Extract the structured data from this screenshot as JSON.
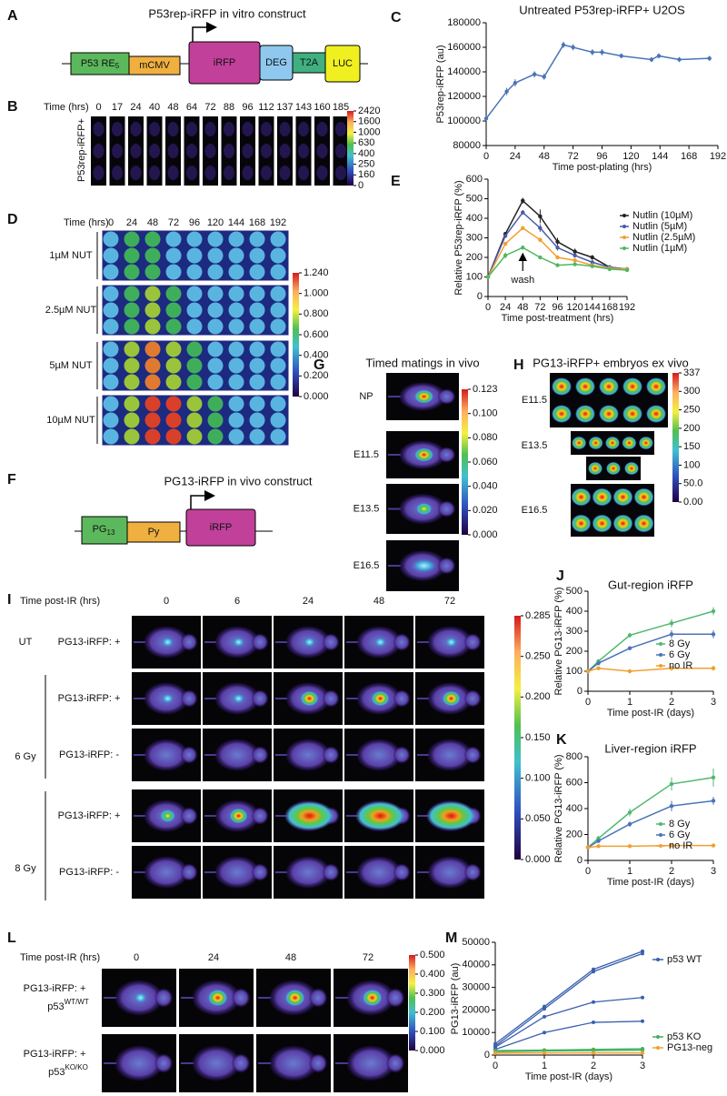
{
  "panel_letters": [
    "A",
    "B",
    "C",
    "D",
    "E",
    "F",
    "G",
    "H",
    "I",
    "J",
    "K",
    "L",
    "M"
  ],
  "construct_a": {
    "title": "P53rep-iRFP in vitro construct",
    "re": "P53 RE",
    "re_sub": "5",
    "promoter": "mCMV",
    "reporter": "iRFP",
    "deg": "DEG",
    "t2a": "T2A",
    "luc": "LUC"
  },
  "panel_b": {
    "time_label": "Time (hrs)",
    "times": [
      0,
      17,
      24,
      40,
      48,
      64,
      72,
      88,
      96,
      112,
      137,
      143,
      160,
      185
    ],
    "row_label": "P53rep-iRFP+",
    "colorbar": [
      2420,
      1600,
      1000,
      630,
      400,
      250,
      160,
      0
    ]
  },
  "panel_d": {
    "time_label": "Time (hrs)",
    "times": [
      0,
      24,
      48,
      72,
      96,
      120,
      144,
      168,
      192
    ],
    "rows": [
      "1µM NUT",
      "2.5µM NUT",
      "5µM NUT",
      "10µM NUT"
    ],
    "colorbar": [
      {
        "value": 1.24,
        "label": "1.240"
      },
      {
        "value": 1,
        "label": "1.000"
      },
      {
        "value": 0.8,
        "label": "0.800"
      },
      {
        "value": 0.6,
        "label": "0.600"
      },
      {
        "value": 0.4,
        "label": "0.400"
      },
      {
        "value": 0.2,
        "label": "0.200"
      },
      {
        "value": 0,
        "label": "0.000"
      }
    ]
  },
  "construct_f": {
    "title": "PG13-iRFP in vivo construct",
    "pg": "PG",
    "pg_sub": "13",
    "py": "Py",
    "reporter": "iRFP"
  },
  "panel_g": {
    "title": "Timed matings in vivo",
    "rows": [
      "NP",
      "E11.5",
      "E13.5",
      "E16.5"
    ],
    "colorbar": [
      0.123,
      {
        "value": 0.1,
        "label": "0.100"
      },
      {
        "value": 0.08,
        "label": "0.080"
      },
      {
        "value": 0.06,
        "label": "0.060"
      },
      {
        "value": 0.04,
        "label": "0.040"
      },
      {
        "value": 0.02,
        "label": "0.020"
      },
      {
        "value": 0,
        "label": "0.000"
      }
    ]
  },
  "panel_h": {
    "title": "PG13-iRFP+ embryos ex vivo",
    "rows": [
      "E11.5",
      "E13.5",
      "E16.5"
    ],
    "colorbar": [
      337,
      300,
      250,
      200,
      150,
      100,
      {
        "value": 50,
        "label": "50.0"
      },
      {
        "value": 0,
        "label": "0.00"
      }
    ]
  },
  "panel_i": {
    "time_label": "Time post-IR (hrs)",
    "times": [
      0,
      6,
      24,
      48,
      72
    ],
    "groups": [
      "UT",
      "6 Gy",
      "8 Gy"
    ],
    "rows": [
      "PG13-iRFP: +",
      "PG13-iRFP: +",
      "PG13-iRFP: -",
      "PG13-iRFP: +",
      "PG13-iRFP: -"
    ],
    "colorbar": [
      0.285,
      {
        "value": 0.25,
        "label": "0.250"
      },
      {
        "value": 0.2,
        "label": "0.200"
      },
      {
        "value": 0.15,
        "label": "0.150"
      },
      {
        "value": 0.1,
        "label": "0.100"
      },
      {
        "value": 0.05,
        "label": "0.050"
      },
      {
        "value": 0,
        "label": "0.000"
      }
    ]
  },
  "panel_l": {
    "time_label": "Time post-IR (hrs)",
    "times": [
      0,
      24,
      48,
      72
    ],
    "rows": [
      {
        "line1": "PG13-iRFP: +",
        "line2": "p53",
        "sup": "WT/WT"
      },
      {
        "line1": "PG13-iRFP: +",
        "line2": "p53",
        "sup": "KO/KO"
      }
    ],
    "colorbar": [
      {
        "value": 0.5,
        "label": "0.500"
      },
      {
        "value": 0.4,
        "label": "0.400"
      },
      {
        "value": 0.3,
        "label": "0.300"
      },
      {
        "value": 0.2,
        "label": "0.200"
      },
      {
        "value": 0.1,
        "label": "0.100"
      },
      {
        "value": 0,
        "label": "0.000"
      }
    ]
  },
  "chart_data": [
    {
      "type": "line",
      "title": "Untreated P53rep-iRFP+ U2OS",
      "x_label": "Time post-plating (hrs)",
      "y_label": "P53rep-iRFP (au)",
      "x": [
        0,
        17,
        24,
        40,
        48,
        64,
        72,
        88,
        96,
        112,
        137,
        143,
        160,
        185
      ],
      "xlim": [
        0,
        192
      ],
      "xticks": [
        0,
        24,
        48,
        72,
        96,
        120,
        144,
        168,
        192
      ],
      "ylim": [
        80000,
        180000
      ],
      "yticks": [
        80000,
        100000,
        120000,
        140000,
        160000,
        180000
      ],
      "series": [
        {
          "color": "#4a74b8",
          "values": [
            102000,
            124000,
            131000,
            138000,
            136000,
            162000,
            160000,
            156000,
            156000,
            153000,
            150000,
            153000,
            150000,
            151000
          ],
          "errors": [
            2000,
            3000,
            3000,
            2500,
            2500,
            2500,
            2500,
            2500,
            2500,
            2000,
            2000,
            2000,
            2000,
            2000
          ]
        }
      ]
    },
    {
      "type": "line",
      "x_label": "Time post-treatment (hrs)",
      "y_label": "Relative P53rep-iRFP (%)",
      "x": [
        0,
        24,
        48,
        72,
        96,
        120,
        144,
        168,
        192
      ],
      "xlim": [
        0,
        192
      ],
      "xticks": [
        0,
        24,
        48,
        72,
        96,
        120,
        144,
        168,
        192
      ],
      "ylim": [
        0,
        600
      ],
      "yticks": [
        0,
        100,
        200,
        300,
        400,
        500,
        600
      ],
      "annotations": [
        {
          "text": "wash",
          "x": 48
        }
      ],
      "series": [
        {
          "name": "Nutlin (10µM)",
          "color": "#222222",
          "values": [
            100,
            320,
            490,
            410,
            280,
            230,
            200,
            150,
            140
          ],
          "errors": [
            5,
            10,
            15,
            35,
            20,
            15,
            12,
            10,
            8
          ]
        },
        {
          "name": "Nutlin (5µM)",
          "color": "#4a5aa8",
          "values": [
            100,
            310,
            430,
            350,
            250,
            210,
            175,
            150,
            140
          ],
          "errors": [
            5,
            10,
            12,
            20,
            15,
            12,
            10,
            8,
            8
          ]
        },
        {
          "name": "Nutlin (2.5µM)",
          "color": "#f0a030",
          "values": [
            100,
            270,
            350,
            290,
            200,
            185,
            160,
            145,
            140
          ],
          "errors": [
            5,
            8,
            10,
            12,
            10,
            10,
            8,
            8,
            6
          ]
        },
        {
          "name": "Nutlin (1µM)",
          "color": "#50b860",
          "values": [
            100,
            210,
            250,
            200,
            160,
            165,
            155,
            140,
            135
          ],
          "errors": [
            5,
            15,
            10,
            8,
            8,
            8,
            8,
            6,
            6
          ]
        }
      ]
    },
    {
      "type": "line",
      "title": "Gut-region iRFP",
      "x_label": "Time post-IR (days)",
      "y_label": "Relative PG13-iRFP (%)",
      "x": [
        0,
        0.25,
        1,
        2,
        3
      ],
      "xlim": [
        0,
        3
      ],
      "xticks": [
        0,
        1,
        2,
        3
      ],
      "ylim": [
        0,
        500
      ],
      "yticks": [
        0,
        100,
        200,
        300,
        400,
        500
      ],
      "series": [
        {
          "name": "8 Gy",
          "color": "#50b870",
          "values": [
            100,
            150,
            280,
            340,
            400
          ],
          "errors": [
            0,
            10,
            12,
            20,
            20
          ]
        },
        {
          "name": "6 Gy",
          "color": "#4a74b8",
          "values": [
            100,
            140,
            215,
            285,
            285
          ],
          "errors": [
            0,
            10,
            10,
            20,
            20
          ]
        },
        {
          "name": "no IR",
          "color": "#f0a030",
          "values": [
            100,
            115,
            100,
            115,
            115
          ],
          "errors": [
            0,
            10,
            10,
            12,
            12
          ]
        }
      ]
    },
    {
      "type": "line",
      "title": "Liver-region iRFP",
      "x_label": "Time post-IR (days)",
      "y_label": "Relative PG13-iRFP (%)",
      "x": [
        0,
        0.25,
        1,
        2,
        3
      ],
      "xlim": [
        0,
        3
      ],
      "xticks": [
        0,
        1,
        2,
        3
      ],
      "ylim": [
        0,
        800
      ],
      "yticks": [
        0,
        200,
        400,
        600,
        800
      ],
      "series": [
        {
          "name": "8 Gy",
          "color": "#50b870",
          "values": [
            100,
            170,
            370,
            590,
            640
          ],
          "errors": [
            0,
            20,
            30,
            50,
            70
          ]
        },
        {
          "name": "6 Gy",
          "color": "#4a74b8",
          "values": [
            100,
            150,
            280,
            420,
            460
          ],
          "errors": [
            0,
            15,
            20,
            40,
            30
          ]
        },
        {
          "name": "no IR",
          "color": "#f0a030",
          "values": [
            100,
            110,
            110,
            115,
            115
          ],
          "errors": [
            0,
            8,
            5,
            5,
            5
          ]
        }
      ]
    },
    {
      "type": "line",
      "x_label": "Time post-IR (days)",
      "y_label": "PG13-iRFP (au)",
      "x": [
        0,
        1,
        2,
        3
      ],
      "xlim": [
        0,
        3
      ],
      "xticks": [
        0,
        1,
        2,
        3
      ],
      "ylim": [
        0,
        50000
      ],
      "yticks": [
        0,
        10000,
        20000,
        30000,
        40000,
        50000
      ],
      "groups": [
        {
          "name": "p53 WT",
          "color": "#3a60b0",
          "lines": [
            [
              5000,
              21500,
              38000,
              46000
            ],
            [
              4000,
              20500,
              37000,
              45000
            ],
            [
              3500,
              17000,
              23500,
              25500
            ],
            [
              2500,
              10000,
              14500,
              15000
            ]
          ]
        },
        {
          "name": "p53 KO",
          "color": "#40b060",
          "lines": [
            [
              2000,
              2200,
              2500,
              2800
            ],
            [
              1500,
              1800,
              2000,
              2200
            ]
          ]
        },
        {
          "name": "PG13-neg",
          "color": "#f0a030",
          "lines": [
            [
              1000,
              1000,
              1000,
              1000
            ],
            [
              800,
              900,
              900,
              900
            ]
          ]
        }
      ]
    }
  ]
}
